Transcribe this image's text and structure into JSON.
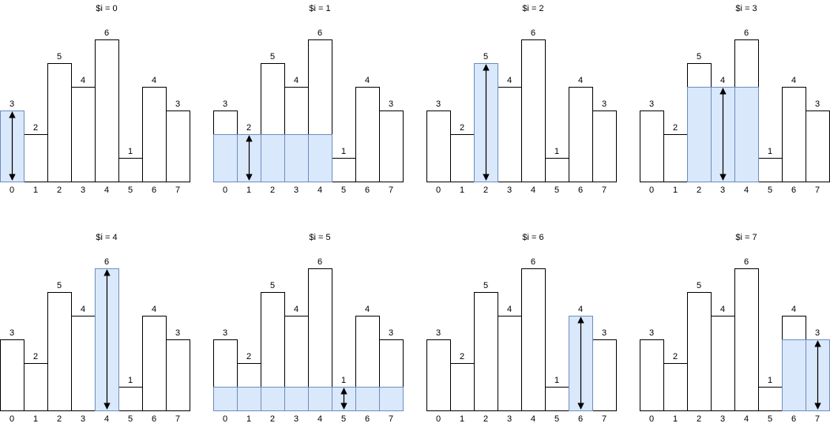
{
  "colors": {
    "bar_stroke": "#000000",
    "highlight_fill": "#dae8fc",
    "highlight_stroke": "#6c8ebf",
    "arrow": "#000000",
    "background": "#ffffff"
  },
  "heights": [
    3,
    2,
    5,
    4,
    6,
    1,
    4,
    3
  ],
  "x_labels": [
    "0",
    "1",
    "2",
    "3",
    "4",
    "5",
    "6",
    "7"
  ],
  "panels": [
    {
      "title": "$i = 0",
      "i": 0,
      "highlight": {
        "from": 0,
        "to": 0,
        "level": 3
      }
    },
    {
      "title": "$i = 1",
      "i": 1,
      "highlight": {
        "from": 0,
        "to": 4,
        "level": 2
      }
    },
    {
      "title": "$i = 2",
      "i": 2,
      "highlight": {
        "from": 2,
        "to": 2,
        "level": 5
      }
    },
    {
      "title": "$i = 3",
      "i": 3,
      "highlight": {
        "from": 2,
        "to": 4,
        "level": 4
      }
    },
    {
      "title": "$i = 4",
      "i": 4,
      "highlight": {
        "from": 4,
        "to": 4,
        "level": 6
      }
    },
    {
      "title": "$i = 5",
      "i": 5,
      "highlight": {
        "from": 0,
        "to": 7,
        "level": 1
      }
    },
    {
      "title": "$i = 6",
      "i": 6,
      "highlight": {
        "from": 6,
        "to": 6,
        "level": 4
      }
    },
    {
      "title": "$i = 7",
      "i": 7,
      "highlight": {
        "from": 6,
        "to": 7,
        "level": 3
      }
    }
  ]
}
